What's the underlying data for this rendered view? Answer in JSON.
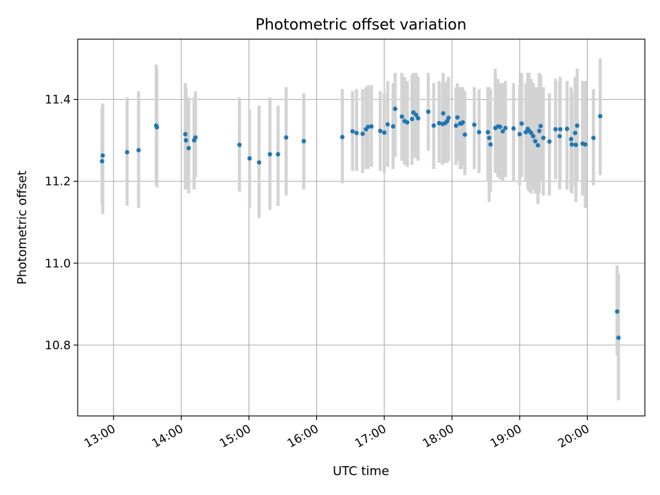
{
  "chart_data": {
    "type": "scatter",
    "title": "Photometric offset variation",
    "xlabel": "UTC time",
    "ylabel": "Photometric offset",
    "xlim_hours": [
      12.47,
      20.85
    ],
    "ylim": [
      10.627,
      11.547
    ],
    "grid": true,
    "x_ticks": [
      {
        "value": 13,
        "label": "13:00"
      },
      {
        "value": 14,
        "label": "14:00"
      },
      {
        "value": 15,
        "label": "15:00"
      },
      {
        "value": 16,
        "label": "16:00"
      },
      {
        "value": 17,
        "label": "17:00"
      },
      {
        "value": 18,
        "label": "18:00"
      },
      {
        "value": 19,
        "label": "19:00"
      },
      {
        "value": 20,
        "label": "20:00"
      }
    ],
    "y_ticks": [
      {
        "value": 10.8,
        "label": "10.8"
      },
      {
        "value": 11.0,
        "label": "11.0"
      },
      {
        "value": 11.2,
        "label": "11.2"
      },
      {
        "value": 11.4,
        "label": "11.4"
      }
    ],
    "colors": {
      "point": "#1f77b4",
      "errorbar": "#d3d3d3",
      "grid": "#b0b0b0",
      "axes": "#000000"
    },
    "series": [
      {
        "name": "offset",
        "x_hours": [
          12.83,
          12.84,
          13.2,
          13.37,
          13.63,
          13.64,
          14.06,
          14.07,
          14.11,
          14.19,
          14.21,
          14.86,
          15.01,
          15.15,
          15.31,
          15.43,
          15.55,
          15.81,
          16.38,
          16.53,
          16.59,
          16.68,
          16.73,
          16.76,
          16.81,
          16.94,
          17.0,
          17.05,
          17.13,
          17.16,
          17.26,
          17.3,
          17.34,
          17.41,
          17.43,
          17.47,
          17.5,
          17.65,
          17.73,
          17.81,
          17.86,
          17.87,
          17.9,
          17.93,
          17.95,
          18.06,
          18.08,
          18.12,
          18.14,
          18.16,
          18.19,
          18.33,
          18.4,
          18.53,
          18.55,
          18.57,
          18.64,
          18.68,
          18.71,
          18.75,
          18.79,
          18.91,
          19.0,
          19.03,
          19.09,
          19.12,
          19.14,
          19.17,
          19.2,
          19.23,
          19.27,
          19.29,
          19.31,
          19.35,
          19.44,
          19.53,
          19.59,
          19.6,
          19.7,
          19.76,
          19.77,
          19.82,
          19.83,
          19.85,
          19.93,
          19.97,
          20.09,
          20.19,
          20.44,
          20.46
        ],
        "y": [
          11.249,
          11.263,
          11.271,
          11.276,
          11.336,
          11.332,
          11.315,
          11.3,
          11.281,
          11.3,
          11.307,
          11.289,
          11.256,
          11.246,
          11.266,
          11.266,
          11.307,
          11.298,
          11.308,
          11.322,
          11.318,
          11.316,
          11.327,
          11.333,
          11.334,
          11.323,
          11.319,
          11.339,
          11.334,
          11.377,
          11.358,
          11.347,
          11.344,
          11.352,
          11.368,
          11.362,
          11.354,
          11.37,
          11.336,
          11.342,
          11.34,
          11.366,
          11.342,
          11.347,
          11.355,
          11.336,
          11.356,
          11.341,
          11.341,
          11.344,
          11.314,
          11.338,
          11.32,
          11.32,
          11.306,
          11.29,
          11.33,
          11.334,
          11.333,
          11.322,
          11.33,
          11.329,
          11.315,
          11.341,
          11.32,
          11.328,
          11.323,
          11.318,
          11.31,
          11.298,
          11.288,
          11.323,
          11.335,
          11.306,
          11.297,
          11.327,
          11.31,
          11.327,
          11.328,
          11.303,
          11.29,
          11.318,
          11.289,
          11.336,
          11.292,
          11.29,
          11.306,
          11.359,
          10.882,
          10.818
        ],
        "err_low": [
          11.145,
          11.12,
          11.14,
          11.135,
          11.19,
          11.185,
          11.18,
          11.18,
          11.17,
          11.18,
          11.21,
          11.175,
          11.135,
          11.11,
          11.13,
          11.14,
          11.165,
          11.18,
          11.195,
          11.225,
          11.225,
          11.22,
          11.23,
          11.23,
          11.235,
          11.225,
          11.22,
          11.235,
          11.23,
          11.26,
          11.25,
          11.24,
          11.235,
          11.24,
          11.26,
          11.255,
          11.25,
          11.275,
          11.23,
          11.245,
          11.24,
          11.255,
          11.245,
          11.245,
          11.25,
          11.24,
          11.25,
          11.23,
          11.23,
          11.24,
          11.215,
          11.23,
          11.22,
          11.2,
          11.15,
          11.175,
          11.22,
          11.21,
          11.205,
          11.2,
          11.21,
          11.2,
          11.19,
          11.21,
          11.2,
          11.18,
          11.175,
          11.17,
          11.18,
          11.17,
          11.145,
          11.17,
          11.2,
          11.165,
          11.165,
          11.205,
          11.18,
          11.2,
          11.18,
          11.175,
          11.17,
          11.19,
          11.15,
          11.2,
          11.165,
          11.135,
          11.19,
          11.215,
          10.775,
          10.665
        ],
        "err_high": [
          11.38,
          11.39,
          11.405,
          11.42,
          11.485,
          11.475,
          11.44,
          11.43,
          11.405,
          11.405,
          11.42,
          11.405,
          11.375,
          11.385,
          11.405,
          11.385,
          11.43,
          11.415,
          11.425,
          11.42,
          11.425,
          11.425,
          11.43,
          11.435,
          11.435,
          11.42,
          11.415,
          11.445,
          11.44,
          11.465,
          11.465,
          11.455,
          11.445,
          11.46,
          11.465,
          11.465,
          11.455,
          11.465,
          11.44,
          11.445,
          11.44,
          11.465,
          11.44,
          11.445,
          11.455,
          11.43,
          11.44,
          11.43,
          11.43,
          11.43,
          11.42,
          11.43,
          11.425,
          11.43,
          11.43,
          11.425,
          11.475,
          11.45,
          11.44,
          11.44,
          11.445,
          11.44,
          11.435,
          11.465,
          11.44,
          11.465,
          11.465,
          11.45,
          11.44,
          11.43,
          11.43,
          11.465,
          11.46,
          11.43,
          11.415,
          11.45,
          11.445,
          11.455,
          11.445,
          11.43,
          11.415,
          11.455,
          11.43,
          11.475,
          11.445,
          11.445,
          11.425,
          11.5,
          10.995,
          10.975
        ]
      }
    ]
  }
}
